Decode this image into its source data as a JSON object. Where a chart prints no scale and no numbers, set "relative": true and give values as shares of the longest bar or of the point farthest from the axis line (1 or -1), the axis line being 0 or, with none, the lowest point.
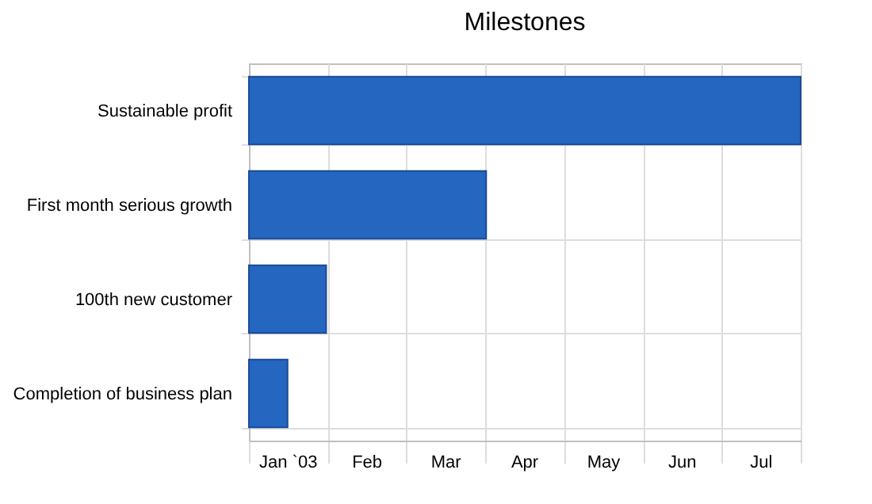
{
  "chart_data": {
    "type": "bar",
    "orientation": "horizontal",
    "title": "Milestones",
    "relative": true,
    "categories": [
      "Sustainable profit",
      "First month serious growth",
      "100th new customer",
      "Completion of business plan"
    ],
    "values": [
      1,
      0.43,
      0.14,
      0.07
    ],
    "color": "#2466c0",
    "annotations": [
      "Jan `03",
      "Feb",
      "Mar",
      "Apr",
      "May",
      "Jun",
      "Jul"
    ],
    "grid": true
  }
}
